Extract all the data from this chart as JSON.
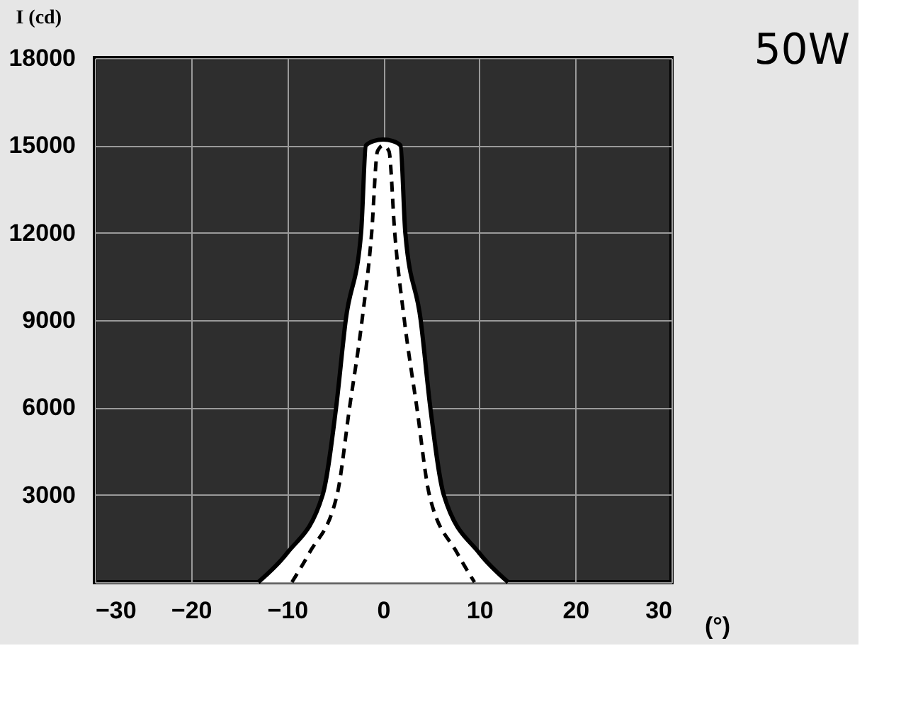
{
  "chart_data": {
    "type": "line",
    "title": "50W",
    "xlabel": "(°)",
    "ylabel": "I (cd)",
    "series": [
      {
        "type": "area",
        "color": "#ffffff",
        "line_style": "solid",
        "x": [
          -13,
          -10,
          -6.3,
          -4.9,
          -3.9,
          -2.3,
          -1.8,
          -1,
          0,
          1,
          1.8,
          2.3,
          3.9,
          4.9,
          6.3,
          10,
          13
        ],
        "values": [
          0,
          1000,
          3000,
          6000,
          9000,
          12000,
          15000,
          15150,
          15200,
          15150,
          15000,
          12000,
          9000,
          6000,
          3000,
          1000,
          0
        ]
      },
      {
        "color": "#000000",
        "line_style": "dashed",
        "x": [
          -9.5,
          -7.7,
          -4.8,
          -3.5,
          -2.2,
          -1.2,
          -0.6,
          0,
          0.6,
          1.2,
          2.2,
          3.5,
          4.8,
          7.7,
          9.5
        ],
        "values": [
          0,
          1000,
          3000,
          6000,
          9000,
          12000,
          14800,
          15000,
          14800,
          12000,
          9000,
          6000,
          3000,
          1000,
          0
        ]
      }
    ],
    "xlim": [
      -30,
      30
    ],
    "xticks": [
      -30,
      -20,
      -10,
      0,
      10,
      20,
      30
    ],
    "ylim": [
      0,
      18000
    ],
    "yticks": [
      {
        "value": 0,
        "label": null
      },
      3000,
      6000,
      9000,
      12000,
      15000,
      18000
    ],
    "grid": true
  }
}
